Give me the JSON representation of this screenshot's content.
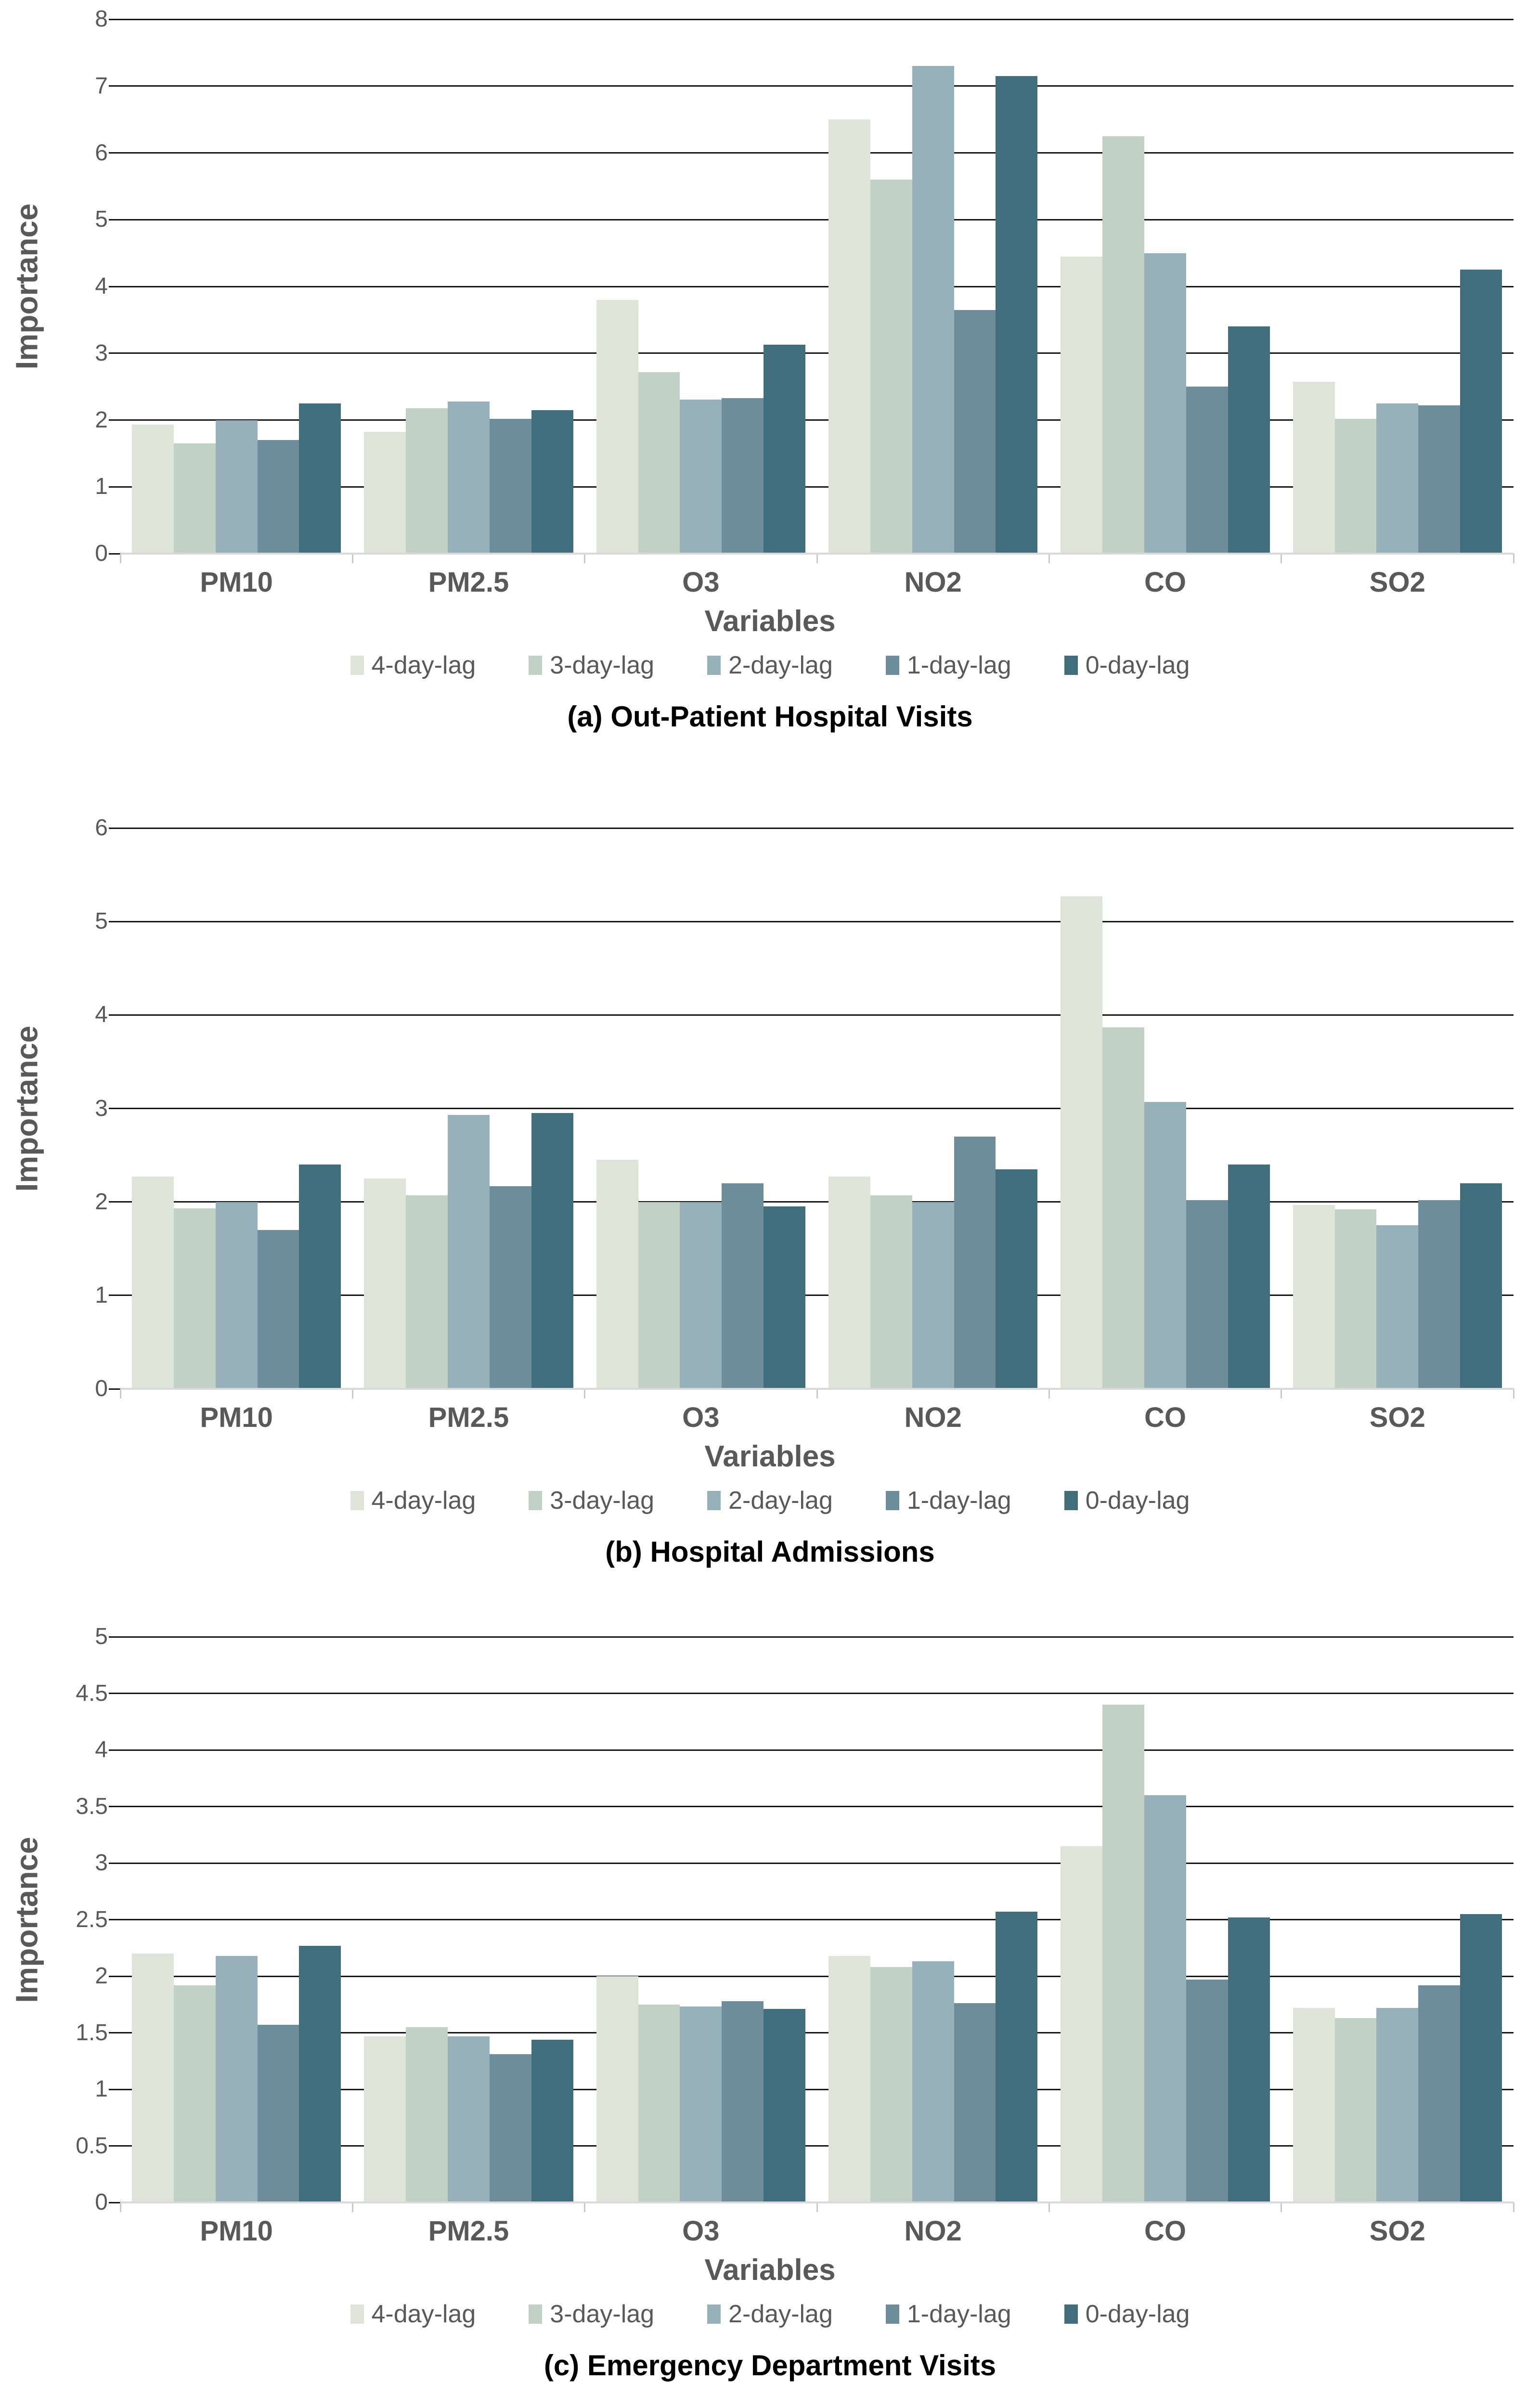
{
  "figure": {
    "style": {
      "background": "#ffffff",
      "gridline_color": "#161616",
      "axis_line_color": "#d9d9d9",
      "label_gray": "#595959",
      "caption_color": "#000000"
    }
  },
  "chart_data": [
    {
      "type": "bar",
      "title": "(a) Out-Patient Hospital Visits",
      "xlabel": "Variables",
      "ylabel": "Importance",
      "ylim": [
        0,
        8
      ],
      "yticks": [
        0,
        1,
        2,
        3,
        4,
        5,
        6,
        7,
        8
      ],
      "grid": true,
      "legend_position": "bottom",
      "categories": [
        "PM10",
        "PM2.5",
        "O3",
        "NO2",
        "CO",
        "SO2"
      ],
      "series": [
        {
          "name": "4-day-lag",
          "color": "#dee4d8",
          "values": [
            1.93,
            1.82,
            3.8,
            6.5,
            4.45,
            2.57
          ]
        },
        {
          "name": "3-day-lag",
          "color": "#c2d1c6",
          "values": [
            1.65,
            2.18,
            2.72,
            5.6,
            6.25,
            2.02
          ]
        },
        {
          "name": "2-day-lag",
          "color": "#97b1bb",
          "values": [
            2.0,
            2.28,
            2.31,
            7.3,
            4.5,
            2.25
          ]
        },
        {
          "name": "1-day-lag",
          "color": "#6d8d9a",
          "values": [
            1.7,
            2.02,
            2.33,
            3.65,
            2.5,
            2.22
          ]
        },
        {
          "name": "0-day-lag",
          "color": "#416e7d",
          "values": [
            2.25,
            2.15,
            3.13,
            7.15,
            3.4,
            4.25
          ]
        }
      ]
    },
    {
      "type": "bar",
      "title": "(b) Hospital Admissions",
      "xlabel": "Variables",
      "ylabel": "Importance",
      "ylim": [
        0,
        6
      ],
      "yticks": [
        0,
        1,
        2,
        3,
        4,
        5,
        6
      ],
      "grid": true,
      "legend_position": "bottom",
      "categories": [
        "PM10",
        "PM2.5",
        "O3",
        "NO2",
        "CO",
        "SO2"
      ],
      "series": [
        {
          "name": "4-day-lag",
          "color": "#dee4d8",
          "values": [
            2.27,
            2.25,
            2.45,
            2.27,
            5.27,
            1.97
          ]
        },
        {
          "name": "3-day-lag",
          "color": "#c2d1c6",
          "values": [
            1.93,
            2.07,
            2.0,
            2.07,
            3.87,
            1.92
          ]
        },
        {
          "name": "2-day-lag",
          "color": "#97b1bb",
          "values": [
            2.0,
            2.93,
            2.0,
            2.0,
            3.07,
            1.75
          ]
        },
        {
          "name": "1-day-lag",
          "color": "#6d8d9a",
          "values": [
            1.7,
            2.17,
            2.2,
            2.7,
            2.02,
            2.02
          ]
        },
        {
          "name": "0-day-lag",
          "color": "#416e7d",
          "values": [
            2.4,
            2.95,
            1.95,
            2.35,
            2.4,
            2.2
          ]
        }
      ]
    },
    {
      "type": "bar",
      "title": "(c) Emergency Department Visits",
      "xlabel": "Variables",
      "ylabel": "Importance",
      "ylim": [
        0,
        5
      ],
      "yticks": [
        0,
        0.5,
        1,
        1.5,
        2,
        2.5,
        3,
        3.5,
        4,
        4.5,
        5
      ],
      "grid": true,
      "legend_position": "bottom",
      "categories": [
        "PM10",
        "PM2.5",
        "O3",
        "NO2",
        "CO",
        "SO2"
      ],
      "series": [
        {
          "name": "4-day-lag",
          "color": "#dee4d8",
          "values": [
            2.2,
            1.47,
            2.0,
            2.18,
            3.15,
            1.72
          ]
        },
        {
          "name": "3-day-lag",
          "color": "#c2d1c6",
          "values": [
            1.92,
            1.55,
            1.75,
            2.08,
            4.4,
            1.63
          ]
        },
        {
          "name": "2-day-lag",
          "color": "#97b1bb",
          "values": [
            2.18,
            1.47,
            1.73,
            2.13,
            3.6,
            1.72
          ]
        },
        {
          "name": "1-day-lag",
          "color": "#6d8d9a",
          "values": [
            1.57,
            1.31,
            1.78,
            1.76,
            1.97,
            1.92
          ]
        },
        {
          "name": "0-day-lag",
          "color": "#416e7d",
          "values": [
            2.27,
            1.44,
            1.71,
            2.57,
            2.52,
            2.55
          ]
        }
      ]
    }
  ]
}
